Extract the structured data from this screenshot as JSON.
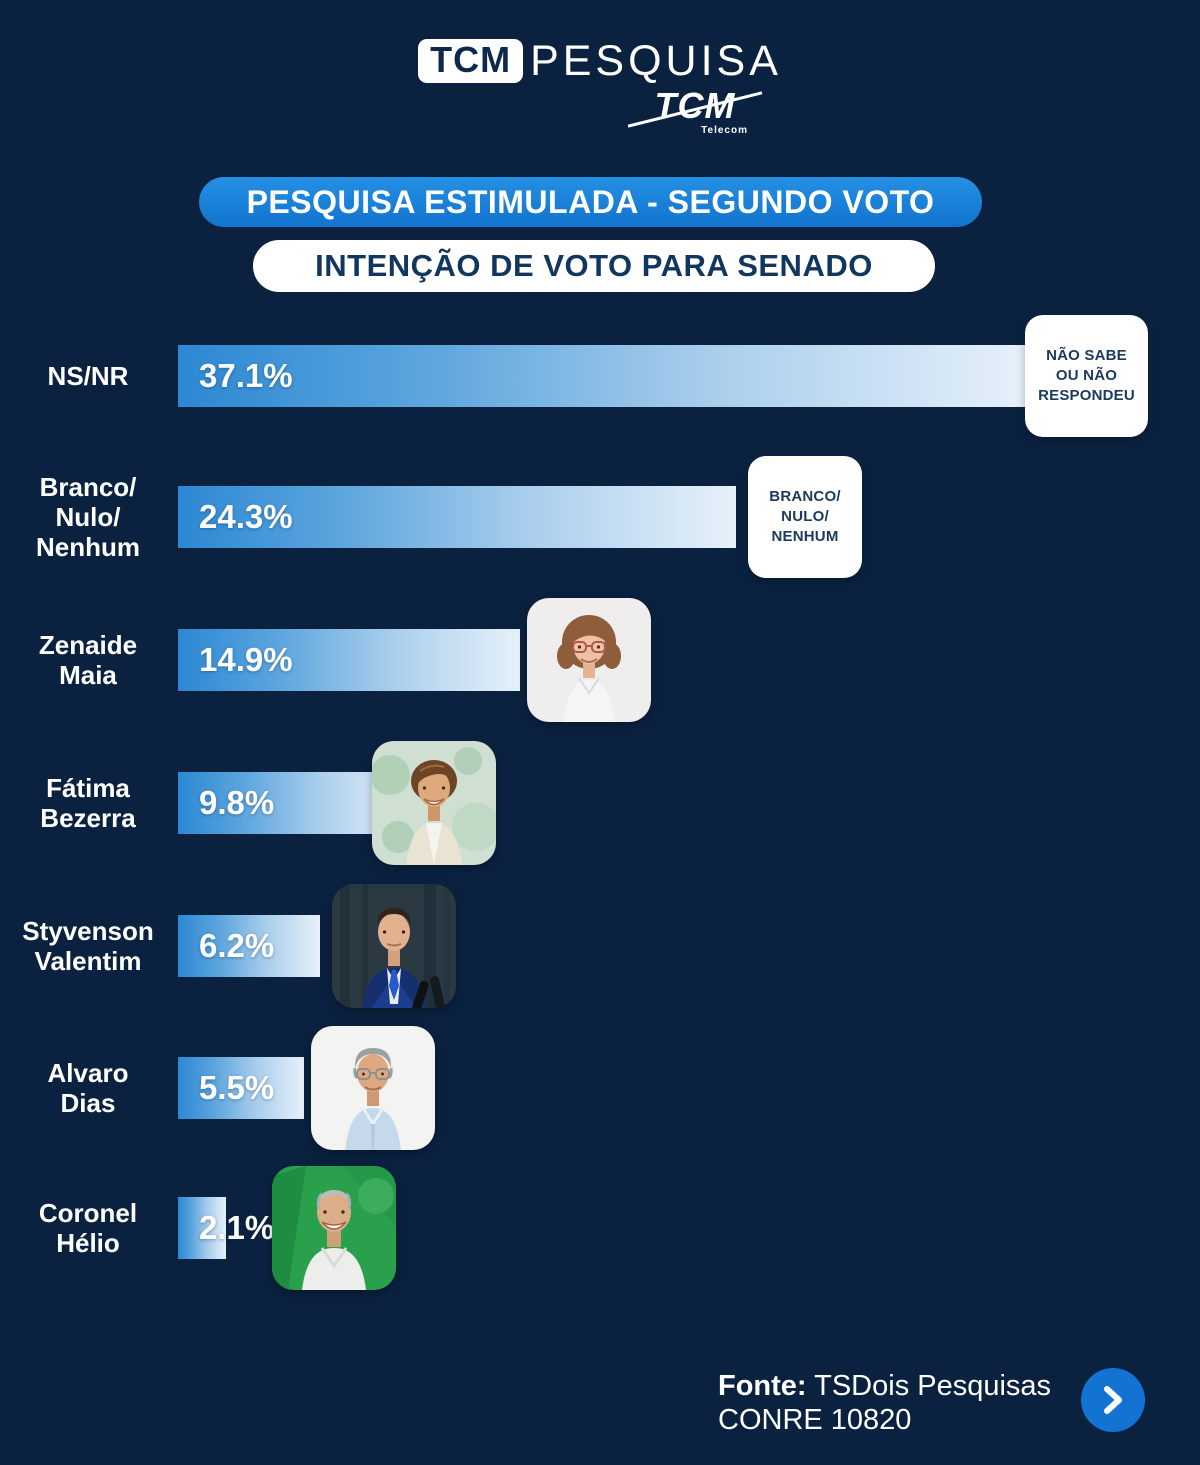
{
  "header": {
    "logo_box": "TCM",
    "logo_main": "PESQUISA",
    "telecom_text": "TCM",
    "telecom_sub": "Telecom",
    "banner_primary": "PESQUISA ESTIMULADA - SEGUNDO VOTO",
    "banner_secondary": "INTENÇÃO DE VOTO PARA SENADO"
  },
  "chart_data": {
    "type": "bar",
    "orientation": "horizontal",
    "title": "Intenção de voto para Senado - Pesquisa estimulada (segundo voto)",
    "unit": "%",
    "xlim": [
      0,
      40
    ],
    "grid": false,
    "categories": [
      "NS/NR",
      "Branco/Nulo/Nenhum",
      "Zenaide Maia",
      "Fátima Bezerra",
      "Styvenson Valentim",
      "Alvaro Dias",
      "Coronel Hélio"
    ],
    "categories_lines": [
      [
        "NS/NR"
      ],
      [
        "Branco/",
        "Nulo/",
        "Nenhum"
      ],
      [
        "Zenaide",
        "Maia"
      ],
      [
        "Fátima",
        "Bezerra"
      ],
      [
        "Styvenson",
        "Valentim"
      ],
      [
        "Alvaro",
        "Dias"
      ],
      [
        "Coronel",
        "Hélio"
      ]
    ],
    "values": [
      37.1,
      24.3,
      14.9,
      9.8,
      6.2,
      5.5,
      2.1
    ],
    "value_labels": [
      "37.1%",
      "24.3%",
      "14.9%",
      "9.8%",
      "6.2%",
      "5.5%",
      "2.1%"
    ],
    "endcap_boxes": [
      {
        "row": 0,
        "lines": [
          "NÃO SABE",
          "OU NÃO",
          "RESPONDEU"
        ]
      },
      {
        "row": 1,
        "lines": [
          "BRANCO/",
          "NULO/",
          "NENHUM"
        ]
      }
    ],
    "photo_rows": [
      "Zenaide Maia",
      "Fátima Bezerra",
      "Styvenson Valentim",
      "Alvaro Dias",
      "Coronel Hélio"
    ],
    "legend": null
  },
  "footer": {
    "source_label": "Fonte:",
    "source_name": " TSDois Pesquisas",
    "registration": "CONRE 10820"
  },
  "colors": {
    "background": "#0d2a4c",
    "bar_gradient_start": "#2c88d3",
    "bar_gradient_end": "#e7f1fa",
    "banner_blue": "#1679d6",
    "card_white": "#ffffff",
    "navy_text": "#11365f",
    "arrow_button_blue": "#1273d2"
  }
}
